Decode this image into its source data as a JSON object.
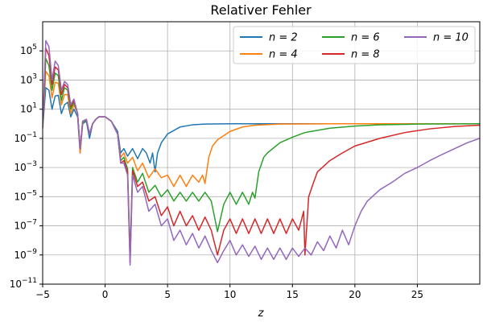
{
  "chart_data": {
    "type": "line",
    "title": "Relativer Fehler",
    "xlabel": "z",
    "ylabel": "",
    "xlim": [
      -5,
      30
    ],
    "ylim": [
      1e-11,
      10000000
    ],
    "yscale": "log",
    "grid": true,
    "legend_position": "top-right",
    "legend_columns": 3,
    "x_ticks": [
      {
        "value": -5,
        "label": "−5"
      },
      {
        "value": 0,
        "label": "0"
      },
      {
        "value": 5,
        "label": "5"
      },
      {
        "value": 10,
        "label": "10"
      },
      {
        "value": 15,
        "label": "15"
      },
      {
        "value": 20,
        "label": "20"
      },
      {
        "value": 25,
        "label": "25"
      }
    ],
    "y_ticks": [
      {
        "value": 1e-11,
        "base": "10",
        "exp": "−11"
      },
      {
        "value": 1e-09,
        "base": "10",
        "exp": "−9"
      },
      {
        "value": 1e-07,
        "base": "10",
        "exp": "−7"
      },
      {
        "value": 1e-05,
        "base": "10",
        "exp": "−5"
      },
      {
        "value": 0.001,
        "base": "10",
        "exp": "−3"
      },
      {
        "value": 0.1,
        "base": "10",
        "exp": "−1"
      },
      {
        "value": 10,
        "base": "10",
        "exp": "1"
      },
      {
        "value": 1000,
        "base": "10",
        "exp": "3"
      },
      {
        "value": 100000,
        "base": "10",
        "exp": "5"
      }
    ],
    "series": [
      {
        "name": "n = 2",
        "color": "#1f77b4",
        "points": [
          [
            -5,
            0.5
          ],
          [
            -4.75,
            300
          ],
          [
            -4.5,
            200
          ],
          [
            -4.25,
            10
          ],
          [
            -4,
            80
          ],
          [
            -3.75,
            90
          ],
          [
            -3.5,
            5
          ],
          [
            -3.25,
            20
          ],
          [
            -3,
            30
          ],
          [
            -2.75,
            3
          ],
          [
            -2.5,
            10
          ],
          [
            -2.2,
            3
          ],
          [
            -2,
            0.01
          ],
          [
            -1.8,
            1
          ],
          [
            -1.5,
            1.5
          ],
          [
            -1.25,
            0.1
          ],
          [
            -1,
            1
          ],
          [
            -0.75,
            2
          ],
          [
            -0.5,
            3
          ],
          [
            0,
            3
          ],
          [
            0.5,
            1.5
          ],
          [
            1,
            0.3
          ],
          [
            1.25,
            0.01
          ],
          [
            1.5,
            0.02
          ],
          [
            1.8,
            0.006
          ],
          [
            2.2,
            0.02
          ],
          [
            2.6,
            0.004
          ],
          [
            3,
            0.02
          ],
          [
            3.3,
            0.01
          ],
          [
            3.6,
            0.002
          ],
          [
            3.8,
            0.01
          ],
          [
            4,
            0.0005
          ],
          [
            4.2,
            0.01
          ],
          [
            4.5,
            0.05
          ],
          [
            5,
            0.2
          ],
          [
            6,
            0.6
          ],
          [
            7,
            0.85
          ],
          [
            8,
            0.95
          ],
          [
            10,
            1
          ],
          [
            15,
            1
          ],
          [
            20,
            1
          ],
          [
            25,
            1
          ],
          [
            30,
            1
          ]
        ]
      },
      {
        "name": "n = 4",
        "color": "#ff7f0e",
        "points": [
          [
            -5,
            0.5
          ],
          [
            -4.75,
            4000
          ],
          [
            -4.5,
            2000
          ],
          [
            -4.25,
            60
          ],
          [
            -4,
            700
          ],
          [
            -3.75,
            600
          ],
          [
            -3.5,
            20
          ],
          [
            -3.25,
            100
          ],
          [
            -3,
            100
          ],
          [
            -2.75,
            5
          ],
          [
            -2.5,
            20
          ],
          [
            -2.2,
            5
          ],
          [
            -2,
            0.01
          ],
          [
            -1.8,
            1
          ],
          [
            -1.5,
            2
          ],
          [
            -1.25,
            0.2
          ],
          [
            -1,
            1
          ],
          [
            -0.75,
            2
          ],
          [
            -0.5,
            3
          ],
          [
            0,
            3
          ],
          [
            0.5,
            1.5
          ],
          [
            1,
            0.2
          ],
          [
            1.25,
            0.005
          ],
          [
            1.5,
            0.01
          ],
          [
            1.8,
            0.002
          ],
          [
            2.2,
            0.005
          ],
          [
            2.6,
            0.0006
          ],
          [
            3,
            0.002
          ],
          [
            3.5,
            0.0002
          ],
          [
            4,
            0.0008
          ],
          [
            4.5,
            0.0002
          ],
          [
            5,
            0.0003
          ],
          [
            5.5,
            5e-05
          ],
          [
            6,
            0.0003
          ],
          [
            6.5,
            5e-05
          ],
          [
            7,
            0.0003
          ],
          [
            7.5,
            0.0001
          ],
          [
            7.8,
            0.0003
          ],
          [
            8,
            8e-05
          ],
          [
            8.3,
            0.005
          ],
          [
            8.6,
            0.03
          ],
          [
            9,
            0.08
          ],
          [
            10,
            0.3
          ],
          [
            11,
            0.6
          ],
          [
            12,
            0.8
          ],
          [
            14,
            0.95
          ],
          [
            18,
            1
          ],
          [
            25,
            1
          ],
          [
            30,
            1
          ]
        ]
      },
      {
        "name": "n = 6",
        "color": "#2ca02c",
        "points": [
          [
            -5,
            0.5
          ],
          [
            -4.75,
            30000
          ],
          [
            -4.5,
            10000
          ],
          [
            -4.25,
            200
          ],
          [
            -4,
            3000
          ],
          [
            -3.75,
            2000
          ],
          [
            -3.5,
            40
          ],
          [
            -3.25,
            300
          ],
          [
            -3,
            200
          ],
          [
            -2.75,
            10
          ],
          [
            -2.5,
            30
          ],
          [
            -2.2,
            5
          ],
          [
            -2,
            0.02
          ],
          [
            -1.8,
            1
          ],
          [
            -1.5,
            2
          ],
          [
            -1.25,
            0.2
          ],
          [
            -1,
            1
          ],
          [
            -0.75,
            2
          ],
          [
            -0.5,
            3
          ],
          [
            0,
            3
          ],
          [
            0.5,
            1.5
          ],
          [
            1,
            0.2
          ],
          [
            1.25,
            0.003
          ],
          [
            1.5,
            0.005
          ],
          [
            1.8,
            0.0008
          ],
          [
            2,
            1e-09
          ],
          [
            2.2,
            0.001
          ],
          [
            2.6,
            0.0001
          ],
          [
            3,
            0.0004
          ],
          [
            3.5,
            2e-05
          ],
          [
            4,
            6e-05
          ],
          [
            4.5,
            1e-05
          ],
          [
            5,
            3e-05
          ],
          [
            5.5,
            5e-06
          ],
          [
            6,
            2e-05
          ],
          [
            6.5,
            5e-06
          ],
          [
            7,
            2e-05
          ],
          [
            7.5,
            5e-06
          ],
          [
            8,
            2e-05
          ],
          [
            8.5,
            5e-06
          ],
          [
            9,
            4e-08
          ],
          [
            9.5,
            3e-06
          ],
          [
            10,
            2e-05
          ],
          [
            10.5,
            3e-06
          ],
          [
            11,
            2e-05
          ],
          [
            11.5,
            3e-06
          ],
          [
            11.8,
            2e-05
          ],
          [
            12,
            8e-06
          ],
          [
            12.3,
            0.0005
          ],
          [
            12.7,
            0.005
          ],
          [
            13,
            0.01
          ],
          [
            14,
            0.05
          ],
          [
            15,
            0.12
          ],
          [
            16,
            0.25
          ],
          [
            18,
            0.5
          ],
          [
            20,
            0.7
          ],
          [
            22,
            0.85
          ],
          [
            25,
            0.95
          ],
          [
            30,
            1
          ]
        ]
      },
      {
        "name": "n = 8",
        "color": "#d62728",
        "points": [
          [
            -5,
            0.5
          ],
          [
            -4.75,
            150000
          ],
          [
            -4.5,
            50000
          ],
          [
            -4.25,
            500
          ],
          [
            -4,
            8000
          ],
          [
            -3.75,
            5000
          ],
          [
            -3.5,
            100
          ],
          [
            -3.25,
            500
          ],
          [
            -3,
            300
          ],
          [
            -2.75,
            15
          ],
          [
            -2.5,
            40
          ],
          [
            -2.2,
            5
          ],
          [
            -2,
            0.02
          ],
          [
            -1.8,
            1.5
          ],
          [
            -1.5,
            2
          ],
          [
            -1.25,
            0.2
          ],
          [
            -1,
            1
          ],
          [
            -0.75,
            2
          ],
          [
            -0.5,
            3
          ],
          [
            0,
            3
          ],
          [
            0.5,
            1.5
          ],
          [
            1,
            0.2
          ],
          [
            1.25,
            0.002
          ],
          [
            1.5,
            0.003
          ],
          [
            1.8,
            0.0005
          ],
          [
            2,
            3e-10
          ],
          [
            2.2,
            0.0006
          ],
          [
            2.6,
            5e-05
          ],
          [
            3,
            0.0001
          ],
          [
            3.5,
            5e-06
          ],
          [
            4,
            1e-05
          ],
          [
            4.5,
            5e-07
          ],
          [
            5,
            2e-06
          ],
          [
            5.5,
            1e-07
          ],
          [
            6,
            1e-06
          ],
          [
            6.5,
            1e-07
          ],
          [
            7,
            5e-07
          ],
          [
            7.5,
            5e-08
          ],
          [
            8,
            4e-07
          ],
          [
            8.5,
            5e-08
          ],
          [
            9,
            1e-09
          ],
          [
            9.5,
            5e-08
          ],
          [
            10,
            3e-07
          ],
          [
            10.5,
            3e-08
          ],
          [
            11,
            3e-07
          ],
          [
            11.5,
            3e-08
          ],
          [
            12,
            3e-07
          ],
          [
            12.5,
            3e-08
          ],
          [
            13,
            3e-07
          ],
          [
            13.5,
            3e-08
          ],
          [
            14,
            3e-07
          ],
          [
            14.5,
            3e-08
          ],
          [
            15,
            3e-07
          ],
          [
            15.5,
            5e-08
          ],
          [
            15.9,
            1e-06
          ],
          [
            16,
            1e-09
          ],
          [
            16.3,
            1e-05
          ],
          [
            16.7,
            0.0001
          ],
          [
            17,
            0.0005
          ],
          [
            18,
            0.003
          ],
          [
            19,
            0.01
          ],
          [
            20,
            0.03
          ],
          [
            22,
            0.1
          ],
          [
            24,
            0.25
          ],
          [
            26,
            0.45
          ],
          [
            28,
            0.65
          ],
          [
            30,
            0.8
          ]
        ]
      },
      {
        "name": "n = 10",
        "color": "#9467bd",
        "points": [
          [
            -5,
            0.5
          ],
          [
            -4.75,
            500000
          ],
          [
            -4.5,
            200000
          ],
          [
            -4.25,
            1000
          ],
          [
            -4,
            20000
          ],
          [
            -3.75,
            10000
          ],
          [
            -3.5,
            200
          ],
          [
            -3.25,
            800
          ],
          [
            -3,
            500
          ],
          [
            -2.75,
            20
          ],
          [
            -2.5,
            50
          ],
          [
            -2.2,
            5
          ],
          [
            -2,
            0.02
          ],
          [
            -1.8,
            1.5
          ],
          [
            -1.5,
            2
          ],
          [
            -1.25,
            0.2
          ],
          [
            -1,
            1
          ],
          [
            -0.75,
            2
          ],
          [
            -0.5,
            3
          ],
          [
            0,
            3
          ],
          [
            0.5,
            1.5
          ],
          [
            1,
            0.2
          ],
          [
            1.25,
            0.002
          ],
          [
            1.5,
            0.002
          ],
          [
            1.8,
            0.0003
          ],
          [
            2,
            2e-10
          ],
          [
            2.2,
            0.0003
          ],
          [
            2.6,
            2e-05
          ],
          [
            3,
            5e-05
          ],
          [
            3.5,
            1e-06
          ],
          [
            4,
            3e-06
          ],
          [
            4.5,
            1e-07
          ],
          [
            5,
            3e-07
          ],
          [
            5.5,
            1e-08
          ],
          [
            6,
            5e-08
          ],
          [
            6.5,
            5e-09
          ],
          [
            7,
            3e-08
          ],
          [
            7.5,
            3e-09
          ],
          [
            8,
            2e-08
          ],
          [
            8.5,
            2e-09
          ],
          [
            9,
            3e-10
          ],
          [
            9.5,
            2e-09
          ],
          [
            10,
            1e-08
          ],
          [
            10.5,
            1e-09
          ],
          [
            11,
            5e-09
          ],
          [
            11.5,
            8e-10
          ],
          [
            12,
            4e-09
          ],
          [
            12.5,
            5e-10
          ],
          [
            13,
            3e-09
          ],
          [
            13.5,
            5e-10
          ],
          [
            14,
            3e-09
          ],
          [
            14.5,
            5e-10
          ],
          [
            15,
            3e-09
          ],
          [
            15.5,
            8e-10
          ],
          [
            16,
            3e-09
          ],
          [
            16.5,
            1e-09
          ],
          [
            17,
            8e-09
          ],
          [
            17.5,
            2e-09
          ],
          [
            18,
            2e-08
          ],
          [
            18.5,
            3e-09
          ],
          [
            19,
            5e-08
          ],
          [
            19.5,
            5e-09
          ],
          [
            20,
            1e-07
          ],
          [
            20.5,
            1e-06
          ],
          [
            21,
            5e-06
          ],
          [
            22,
            3e-05
          ],
          [
            23,
            0.0001
          ],
          [
            24,
            0.0004
          ],
          [
            25,
            0.001
          ],
          [
            26,
            0.003
          ],
          [
            27,
            0.008
          ],
          [
            28,
            0.02
          ],
          [
            29,
            0.05
          ],
          [
            30,
            0.1
          ]
        ]
      }
    ]
  }
}
